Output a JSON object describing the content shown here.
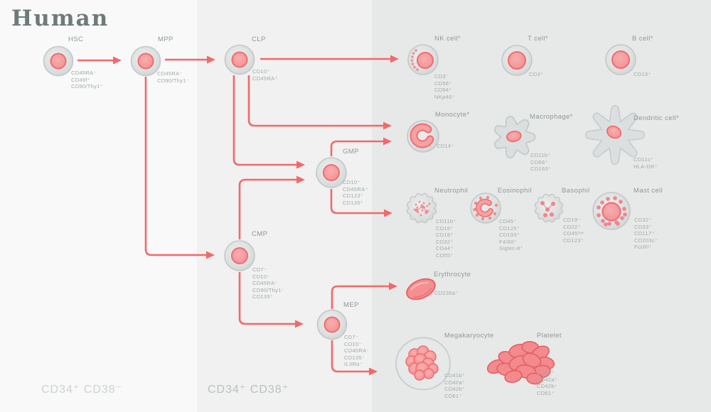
{
  "title": "Human",
  "zones": [
    {
      "label": "CD34⁺ CD38⁻"
    },
    {
      "label": "CD34⁺ CD38⁺"
    }
  ],
  "colors": {
    "arrow": "#f2696b",
    "cell_membrane": "#dcdfdf",
    "cell_membrane_border": "#c2c8c8",
    "nucleus": "#f6a0a2",
    "nucleus_border": "#ee6d70",
    "band_left": "#f8f9f8",
    "band_middle": "#f0f1f0",
    "band_right": "#e7e9e8"
  },
  "cells": {
    "hsc": {
      "name": "HSC",
      "markers": [
        "CD45RA⁻",
        "CD49f⁺",
        "CD90/Thy1⁺"
      ]
    },
    "mpp": {
      "name": "MPP",
      "markers": [
        "CD45RA⁻",
        "CD90/Thy1⁻"
      ]
    },
    "clp": {
      "name": "CLP",
      "markers": [
        "CD10⁺",
        "CD45RA⁺"
      ]
    },
    "gmp": {
      "name": "GMP",
      "markers": [
        "CD10⁻",
        "CD45RA⁺",
        "CD123⁺",
        "CD135⁺"
      ]
    },
    "cmp": {
      "name": "CMP",
      "markers": [
        "CD7⁻",
        "CD10⁻",
        "CD45RA⁻",
        "CD90/Thy1⁻",
        "CD135⁺"
      ]
    },
    "mep": {
      "name": "MEP",
      "markers": [
        "CD7⁻",
        "CD10⁻",
        "CD45RA⁻",
        "CD135⁻",
        "IL3Rα⁻"
      ]
    },
    "nk": {
      "name": "NK cell*",
      "markers": [
        "CD3⁻",
        "CD56⁺",
        "CD94⁺",
        "NKp46⁺"
      ]
    },
    "t": {
      "name": "T cell*",
      "markers": [
        "CD3⁺"
      ]
    },
    "b": {
      "name": "B cell*",
      "markers": [
        "CD19⁺"
      ]
    },
    "monocyte": {
      "name": "Monocyte*",
      "markers": [
        "CD14⁺"
      ]
    },
    "macrophage": {
      "name": "Macrophage*",
      "markers": [
        "CD11b⁺",
        "CD68⁺",
        "CD163⁺"
      ]
    },
    "dendritic": {
      "name": "Dendritic cell*",
      "markers": [
        "CD11c⁺",
        "HLA-DR⁺"
      ]
    },
    "neutrophil": {
      "name": "Neutrophil",
      "markers": [
        "CD11b⁺",
        "CD16⁺",
        "CD18⁺",
        "CD32⁺",
        "CD44⁺",
        "CD55⁺"
      ]
    },
    "eosinophil": {
      "name": "Eosinophil",
      "markers": [
        "CD45⁺",
        "CD125⁺",
        "CD193⁺",
        "F4/80⁺",
        "Siglec-8⁺"
      ]
    },
    "basophil": {
      "name": "Basophil",
      "markers": [
        "CD19⁻",
        "CD22⁺",
        "CD45ˡᵒʷ",
        "CD123⁺"
      ]
    },
    "mast": {
      "name": "Mast cell",
      "markers": [
        "CD32⁺",
        "CD33⁺",
        "CD117⁺",
        "CD203c⁺",
        "FcεRI⁺"
      ]
    },
    "erythrocyte": {
      "name": "Erythrocyte",
      "markers": [
        "CD235a⁺"
      ]
    },
    "megakaryocyte": {
      "name": "Megakaryocyte",
      "markers": [
        "CD41b⁺",
        "CD42a⁺",
        "CD42b⁺",
        "CD61⁺"
      ]
    },
    "platelet": {
      "name": "Platelet",
      "markers": [
        "CD41⁺",
        "CD42a⁺",
        "CD42b⁺",
        "CD61⁺"
      ]
    }
  }
}
